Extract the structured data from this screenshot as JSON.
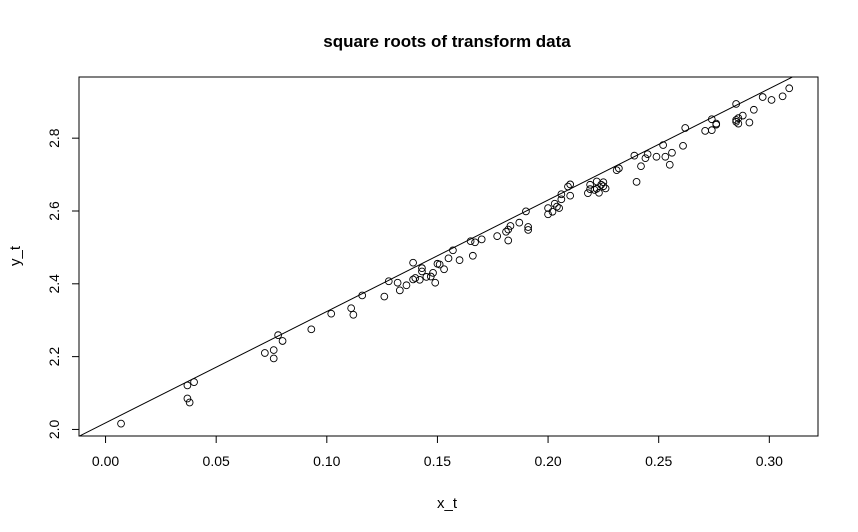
{
  "chart_data": {
    "type": "scatter",
    "title": "square roots of transform data",
    "xlabel": "x_t",
    "ylabel": "y_t",
    "xlim": [
      -0.012,
      0.322
    ],
    "ylim": [
      1.982,
      2.968
    ],
    "x_ticks": [
      0.0,
      0.05,
      0.1,
      0.15,
      0.2,
      0.25,
      0.3
    ],
    "x_tick_labels": [
      "0.00",
      "0.05",
      "0.10",
      "0.15",
      "0.20",
      "0.25",
      "0.30"
    ],
    "y_ticks": [
      2.0,
      2.2,
      2.4,
      2.6,
      2.8
    ],
    "y_tick_labels": [
      "2.0",
      "2.2",
      "2.4",
      "2.6",
      "2.8"
    ],
    "grid": false,
    "fit_line": {
      "intercept": 2.018,
      "slope": 3.06
    },
    "points": [
      [
        0.007,
        2.016
      ],
      [
        0.037,
        2.121
      ],
      [
        0.037,
        2.085
      ],
      [
        0.038,
        2.074
      ],
      [
        0.04,
        2.13
      ],
      [
        0.072,
        2.21
      ],
      [
        0.076,
        2.218
      ],
      [
        0.076,
        2.195
      ],
      [
        0.078,
        2.259
      ],
      [
        0.08,
        2.243
      ],
      [
        0.093,
        2.275
      ],
      [
        0.102,
        2.318
      ],
      [
        0.111,
        2.333
      ],
      [
        0.112,
        2.315
      ],
      [
        0.116,
        2.368
      ],
      [
        0.126,
        2.365
      ],
      [
        0.128,
        2.407
      ],
      [
        0.132,
        2.403
      ],
      [
        0.133,
        2.382
      ],
      [
        0.136,
        2.396
      ],
      [
        0.139,
        2.458
      ],
      [
        0.139,
        2.412
      ],
      [
        0.14,
        2.416
      ],
      [
        0.142,
        2.411
      ],
      [
        0.143,
        2.443
      ],
      [
        0.143,
        2.434
      ],
      [
        0.145,
        2.419
      ],
      [
        0.147,
        2.42
      ],
      [
        0.148,
        2.43
      ],
      [
        0.149,
        2.403
      ],
      [
        0.15,
        2.455
      ],
      [
        0.151,
        2.453
      ],
      [
        0.153,
        2.44
      ],
      [
        0.155,
        2.47
      ],
      [
        0.157,
        2.492
      ],
      [
        0.16,
        2.465
      ],
      [
        0.165,
        2.517
      ],
      [
        0.166,
        2.477
      ],
      [
        0.167,
        2.514
      ],
      [
        0.17,
        2.522
      ],
      [
        0.177,
        2.531
      ],
      [
        0.181,
        2.543
      ],
      [
        0.182,
        2.549
      ],
      [
        0.182,
        2.519
      ],
      [
        0.183,
        2.559
      ],
      [
        0.187,
        2.568
      ],
      [
        0.19,
        2.599
      ],
      [
        0.191,
        2.556
      ],
      [
        0.191,
        2.548
      ],
      [
        0.2,
        2.591
      ],
      [
        0.2,
        2.608
      ],
      [
        0.202,
        2.598
      ],
      [
        0.203,
        2.62
      ],
      [
        0.204,
        2.612
      ],
      [
        0.205,
        2.608
      ],
      [
        0.206,
        2.632
      ],
      [
        0.206,
        2.646
      ],
      [
        0.209,
        2.667
      ],
      [
        0.21,
        2.673
      ],
      [
        0.21,
        2.642
      ],
      [
        0.218,
        2.649
      ],
      [
        0.219,
        2.66
      ],
      [
        0.219,
        2.672
      ],
      [
        0.221,
        2.658
      ],
      [
        0.222,
        2.681
      ],
      [
        0.222,
        2.661
      ],
      [
        0.223,
        2.65
      ],
      [
        0.224,
        2.672
      ],
      [
        0.225,
        2.679
      ],
      [
        0.225,
        2.668
      ],
      [
        0.226,
        2.662
      ],
      [
        0.231,
        2.712
      ],
      [
        0.232,
        2.717
      ],
      [
        0.239,
        2.752
      ],
      [
        0.24,
        2.68
      ],
      [
        0.242,
        2.723
      ],
      [
        0.244,
        2.745
      ],
      [
        0.245,
        2.756
      ],
      [
        0.249,
        2.749
      ],
      [
        0.252,
        2.781
      ],
      [
        0.253,
        2.749
      ],
      [
        0.255,
        2.727
      ],
      [
        0.256,
        2.76
      ],
      [
        0.261,
        2.779
      ],
      [
        0.262,
        2.828
      ],
      [
        0.271,
        2.82
      ],
      [
        0.274,
        2.852
      ],
      [
        0.274,
        2.822
      ],
      [
        0.276,
        2.837
      ],
      [
        0.276,
        2.84
      ],
      [
        0.285,
        2.894
      ],
      [
        0.285,
        2.85
      ],
      [
        0.285,
        2.845
      ],
      [
        0.286,
        2.84
      ],
      [
        0.286,
        2.855
      ],
      [
        0.288,
        2.862
      ],
      [
        0.291,
        2.843
      ],
      [
        0.293,
        2.878
      ],
      [
        0.297,
        2.913
      ],
      [
        0.301,
        2.905
      ],
      [
        0.306,
        2.915
      ],
      [
        0.309,
        2.937
      ]
    ]
  }
}
